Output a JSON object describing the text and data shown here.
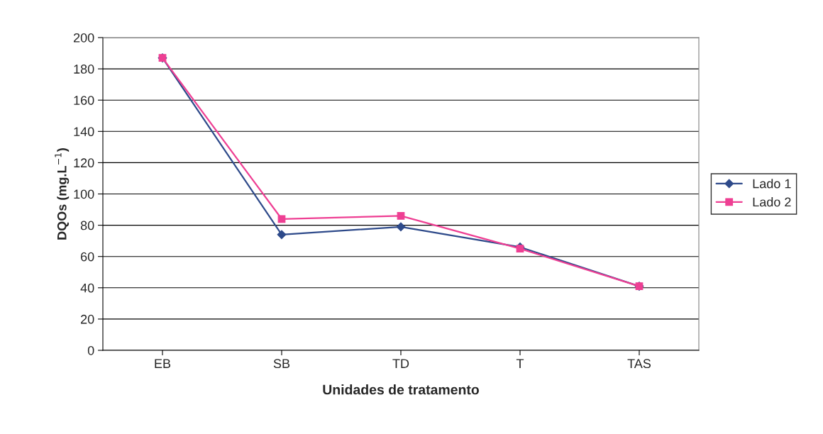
{
  "chart_data": {
    "type": "line",
    "xlabel": "Unidades de tratamento",
    "ylabel": "DQOs (mg.L$^{−1}$)",
    "categories": [
      "EB",
      "SB",
      "TD",
      "T",
      "TAS"
    ],
    "series": [
      {
        "name": "Lado 1",
        "color": "#2e4a8a",
        "values": [
          187,
          74,
          79,
          66,
          41
        ],
        "marker": "diamond"
      },
      {
        "name": "Lado 2",
        "color": "#ee3f93",
        "values": [
          187,
          84,
          86,
          65,
          41
        ],
        "marker": "square"
      }
    ],
    "ylim": [
      0,
      200
    ],
    "yticks": [
      0,
      20,
      40,
      60,
      80,
      100,
      120,
      140,
      160,
      180,
      200
    ],
    "grid": "y",
    "legend": "right",
    "line_style": "solid"
  }
}
